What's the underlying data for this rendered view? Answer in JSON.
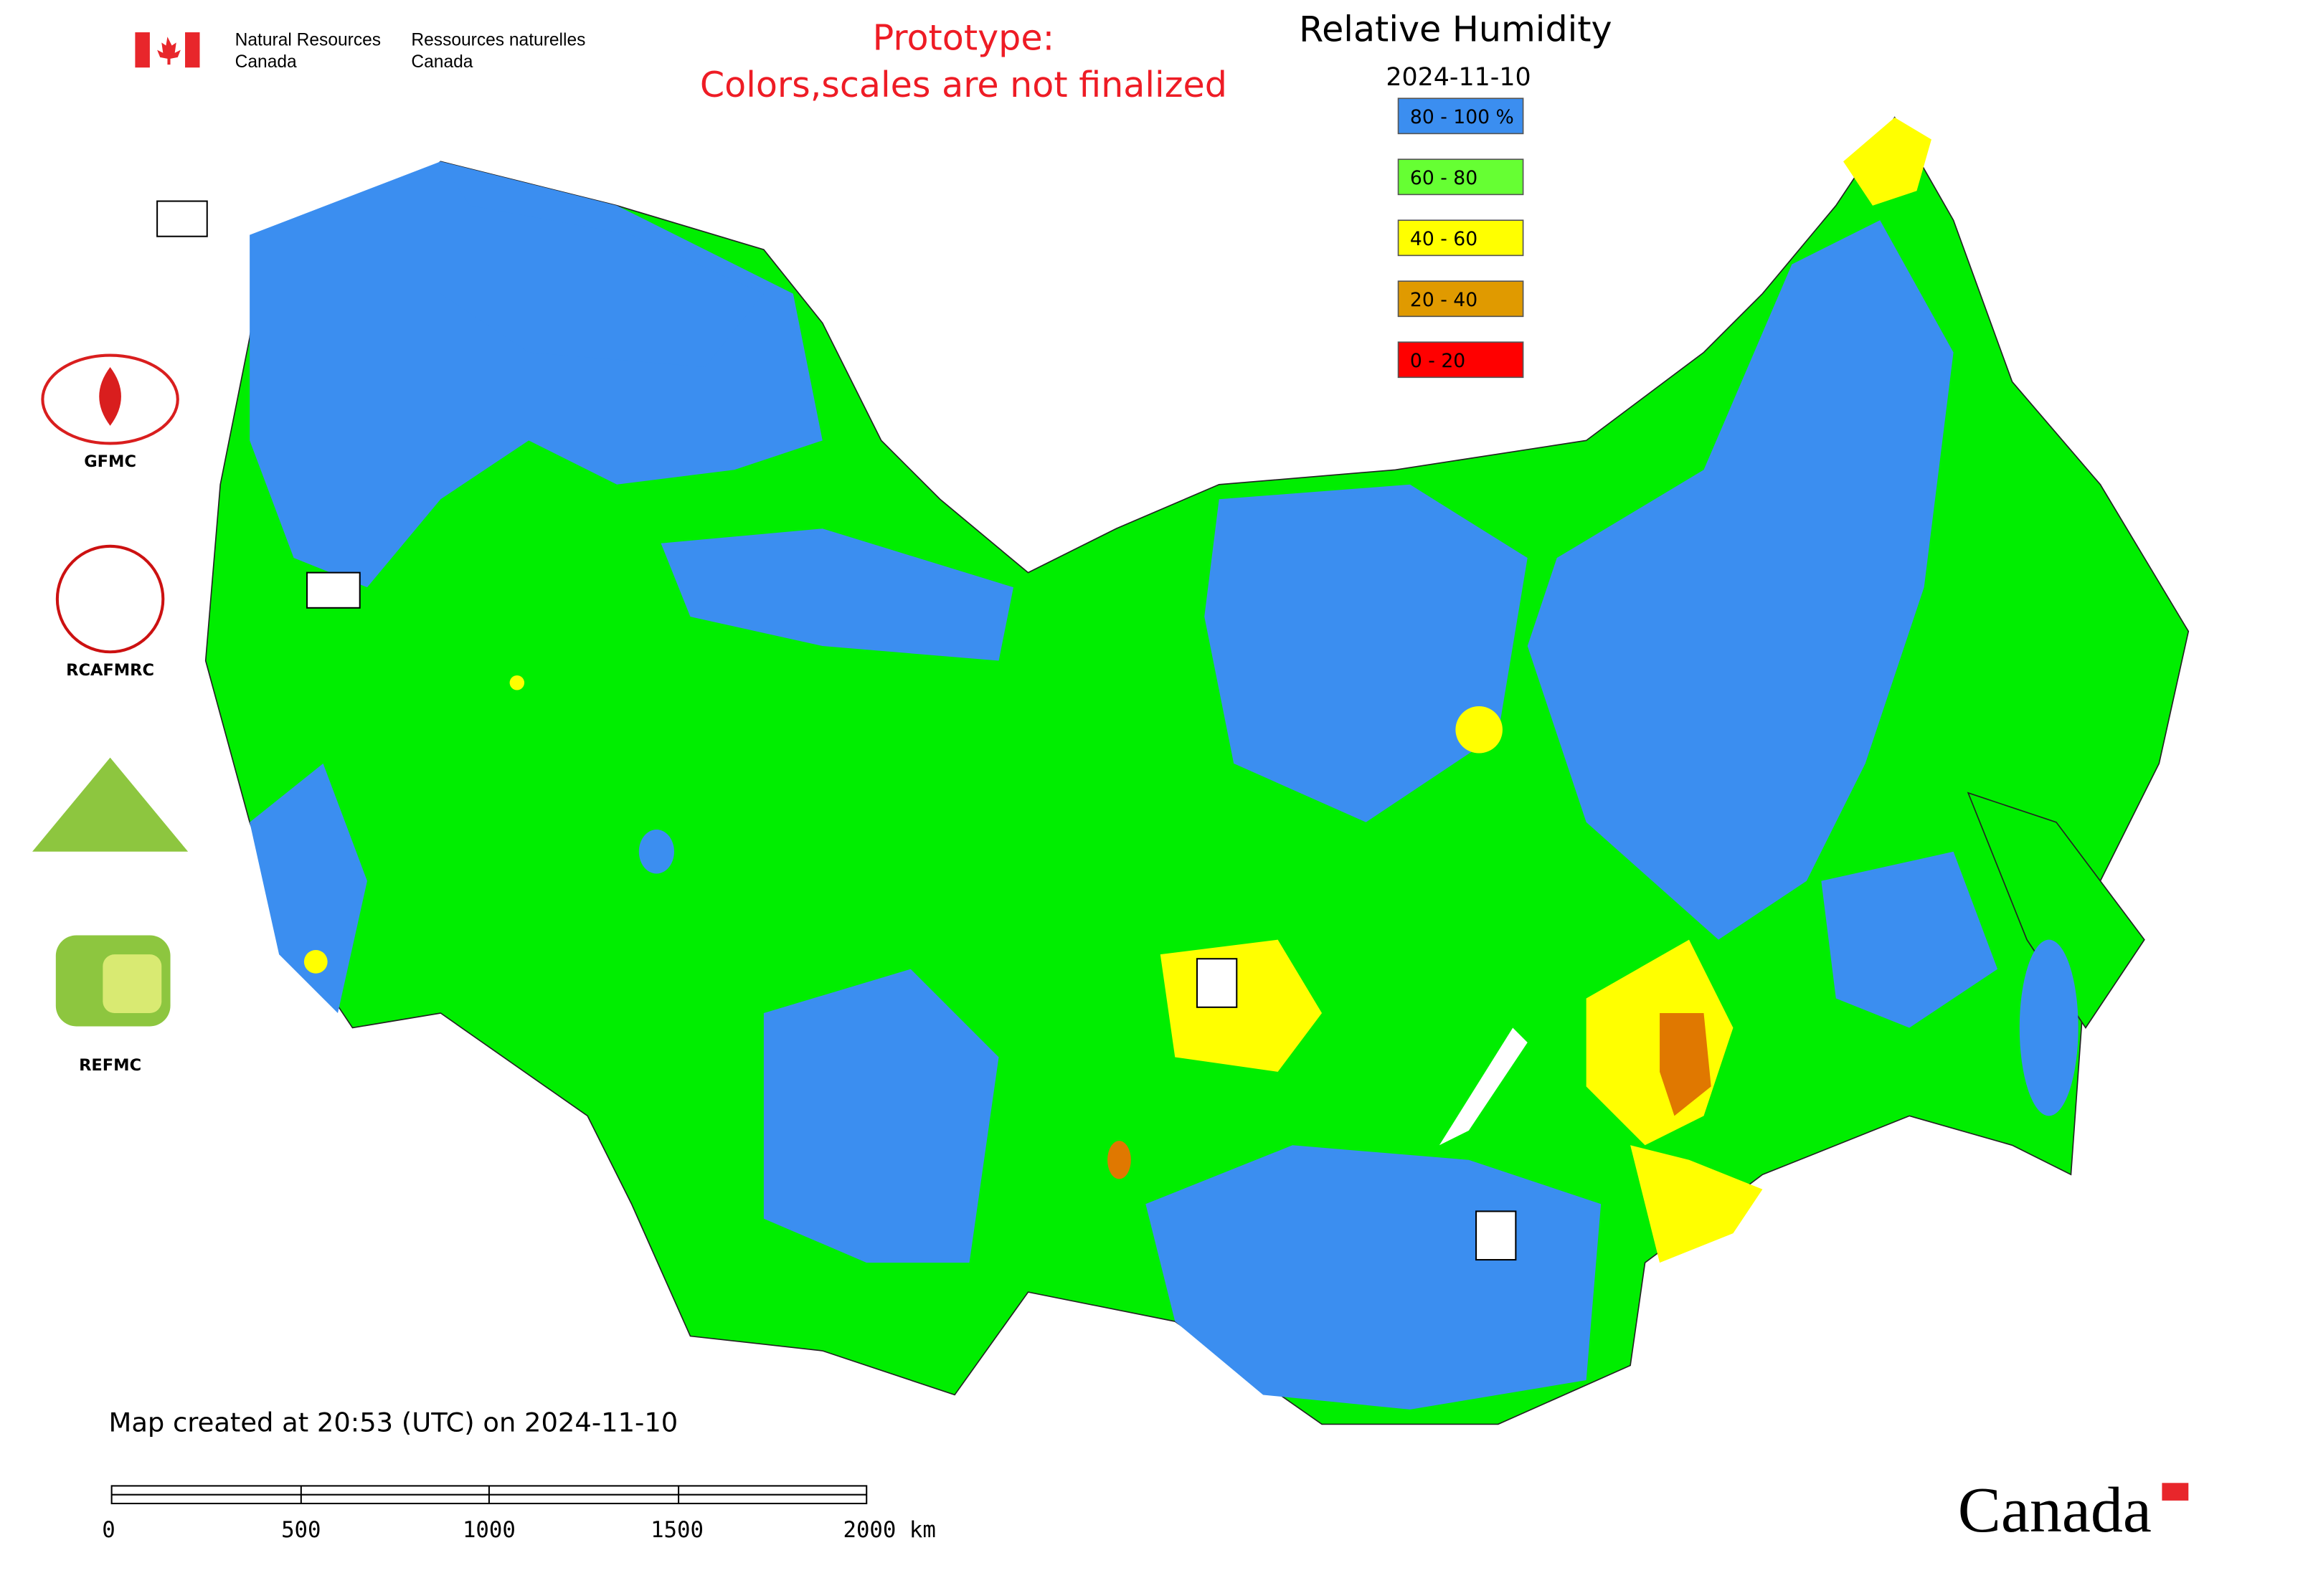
{
  "header": {
    "department_en": [
      "Natural Resources",
      "Canada"
    ],
    "department_fr": [
      "Ressources naturelles",
      "Canada"
    ],
    "notice": [
      "Prototype:",
      "Colors,scales are not finalized"
    ]
  },
  "map": {
    "title": "Relative Humidity",
    "date": "2024-11-10",
    "legend": [
      {
        "label": "80 - 100 %",
        "color": "#3b8ef0"
      },
      {
        "label": "60 - 80",
        "color": "#66ff33"
      },
      {
        "label": "40 - 60",
        "color": "#ffff00"
      },
      {
        "label": "20 - 40",
        "color": "#e09a00"
      },
      {
        "label": "0 - 20",
        "color": "#ff0000"
      }
    ]
  },
  "logos": [
    "GFMC",
    "RCAFMRC",
    "REFMC"
  ],
  "footer": {
    "created": "Map created at 20:53 (UTC) on 2024-11-10",
    "scale_labels": [
      "0",
      "500",
      "1000",
      "1500",
      "2000 km"
    ],
    "wordmark": "Canada"
  }
}
